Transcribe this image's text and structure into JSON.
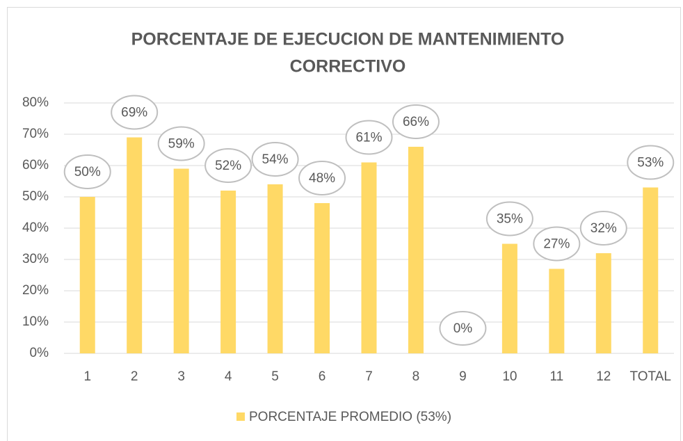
{
  "chart_data": {
    "type": "bar",
    "title": [
      "PORCENTAJE DE EJECUCION DE MANTENIMIENTO",
      "CORRECTIVO"
    ],
    "categories": [
      "1",
      "2",
      "3",
      "4",
      "5",
      "6",
      "7",
      "8",
      "9",
      "10",
      "11",
      "12",
      "TOTAL"
    ],
    "series": [
      {
        "name": "PORCENTAJE  PROMEDIO (53%)",
        "color": "#ffd966",
        "values": [
          50,
          69,
          59,
          52,
          54,
          48,
          61,
          66,
          0,
          35,
          27,
          32,
          53
        ],
        "value_labels": [
          "50%",
          "69%",
          "59%",
          "52%",
          "54%",
          "48%",
          "61%",
          "66%",
          "0%",
          "35%",
          "27%",
          "32%",
          "53%"
        ]
      }
    ],
    "ylim": [
      0,
      80
    ],
    "yticks": [
      {
        "value": 0,
        "label": "0%"
      },
      {
        "value": 10,
        "label": "10%"
      },
      {
        "value": 20,
        "label": "20%"
      },
      {
        "value": 30,
        "label": "30%"
      },
      {
        "value": 40,
        "label": "40%"
      },
      {
        "value": 50,
        "label": "50%"
      },
      {
        "value": 60,
        "label": "60%"
      },
      {
        "value": 70,
        "label": "70%"
      },
      {
        "value": 80,
        "label": "80%"
      }
    ],
    "grid": true,
    "legend": "bottom"
  }
}
